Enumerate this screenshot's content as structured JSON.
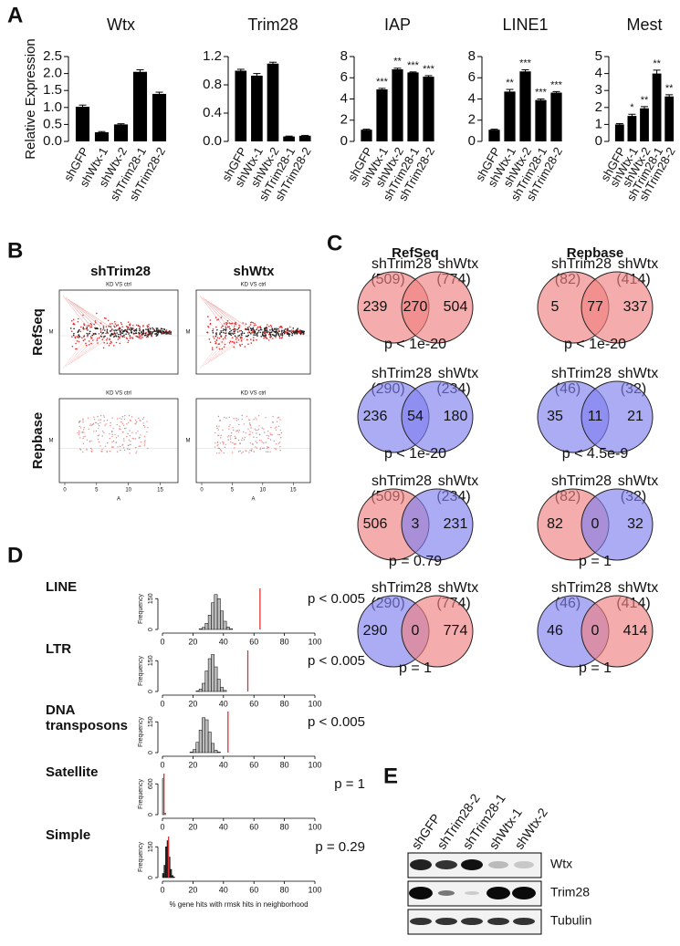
{
  "panel_labels": [
    "A",
    "B",
    "C",
    "D",
    "E"
  ],
  "chart_data": [
    {
      "type": "bar",
      "title": "Wtx",
      "ylabel": "Relative Expression",
      "categories": [
        "shGFP",
        "shWtx-1",
        "shWtx-2",
        "shTrim28-1",
        "shTrim28-2"
      ],
      "values": [
        1.02,
        0.27,
        0.5,
        2.05,
        1.4
      ],
      "errors": [
        0.05,
        0.02,
        0.02,
        0.06,
        0.05
      ],
      "color": "#000000",
      "ylim": [
        0,
        2.5
      ],
      "yticks": [
        {
          "value": 0,
          "label": "0.0"
        },
        0.5,
        {
          "value": 1,
          "label": "1.0"
        },
        1.5,
        {
          "value": 2,
          "label": "2.0"
        },
        2.5
      ]
    },
    {
      "type": "bar",
      "title": "Trim28",
      "categories": [
        "shGFP",
        "shWtx-1",
        "shWtx-2",
        "shTrim28-1",
        "shTrim28-2"
      ],
      "values": [
        1.0,
        0.93,
        1.1,
        0.07,
        0.08
      ],
      "errors": [
        0.02,
        0.03,
        0.02,
        0.005,
        0.005
      ],
      "color": "#000000",
      "ylim": [
        0,
        1.2
      ],
      "yticks": [
        {
          "value": 0,
          "label": "0.0"
        },
        0.4,
        0.8,
        1.2
      ]
    },
    {
      "type": "bar",
      "title": "IAP",
      "categories": [
        "shGFP",
        "shWtx-1",
        "shWtx-2",
        "shTrim28-1",
        "shTrim28-2"
      ],
      "values": [
        1.1,
        4.9,
        6.8,
        6.5,
        6.1
      ],
      "errors": [
        0.05,
        0.1,
        0.1,
        0.05,
        0.1
      ],
      "annotations": [
        null,
        "***",
        "**",
        "***",
        "***"
      ],
      "color": "#000000",
      "ylim": [
        0,
        8
      ],
      "yticks": [
        0,
        2,
        4,
        6,
        8
      ]
    },
    {
      "type": "bar",
      "title": "LINE1",
      "categories": [
        "shGFP",
        "shWtx-1",
        "shWtx-2",
        "shTrim28-1",
        "shTrim28-2"
      ],
      "values": [
        1.1,
        4.7,
        6.6,
        3.9,
        4.6
      ],
      "errors": [
        0.05,
        0.2,
        0.15,
        0.1,
        0.1
      ],
      "annotations": [
        null,
        "**",
        "***",
        "***",
        "***"
      ],
      "color": "#000000",
      "ylim": [
        0,
        8
      ],
      "yticks": [
        0,
        2,
        4,
        6,
        8
      ]
    },
    {
      "type": "bar",
      "title": "Mest",
      "categories": [
        "shGFP",
        "shWtx-1",
        "shWtx-2",
        "shTrim28-1",
        "shTrim28-2"
      ],
      "values": [
        1.0,
        1.5,
        1.95,
        4.0,
        2.65
      ],
      "errors": [
        0.05,
        0.1,
        0.1,
        0.2,
        0.1
      ],
      "annotations": [
        null,
        "*",
        "**",
        "**",
        "**"
      ],
      "color": "#000000",
      "ylim": [
        0,
        5
      ],
      "yticks": [
        0,
        1,
        2,
        3,
        4,
        5
      ]
    },
    {
      "type": "histogram",
      "title": "LINE",
      "annotation": "p < 0.005",
      "ylabel": "Frequency",
      "bins": [
        24,
        26,
        28,
        30,
        32,
        34,
        36,
        38,
        40,
        42,
        44,
        46
      ],
      "values": [
        3,
        10,
        30,
        70,
        130,
        170,
        150,
        90,
        40,
        12,
        3
      ],
      "observed": 64,
      "color": "#bbbbbb",
      "line_color": "#e03030",
      "xlim": [
        0,
        100
      ],
      "xticks": [
        0,
        20,
        40,
        60,
        80,
        100
      ],
      "ylim": [
        0,
        200
      ],
      "yticks": [
        0,
        150
      ]
    },
    {
      "type": "histogram",
      "title": "LTR",
      "annotation": "p < 0.005",
      "ylabel": "Frequency",
      "bins": [
        22,
        24,
        26,
        28,
        30,
        32,
        34,
        36,
        38,
        40,
        42
      ],
      "values": [
        3,
        12,
        40,
        100,
        160,
        180,
        120,
        60,
        20,
        5
      ],
      "observed": 56,
      "color": "#bbbbbb",
      "line_color": "#e03030",
      "xlim": [
        0,
        100
      ],
      "xticks": [
        0,
        20,
        40,
        60,
        80,
        100
      ],
      "ylim": [
        0,
        200
      ],
      "yticks": [
        0,
        150
      ]
    },
    {
      "type": "histogram",
      "title": "DNA transposons",
      "annotation": "p < 0.005",
      "ylabel": "Frequency",
      "bins": [
        18,
        20,
        22,
        24,
        26,
        28,
        30,
        32,
        34,
        36,
        38
      ],
      "values": [
        3,
        15,
        50,
        110,
        170,
        160,
        100,
        45,
        12,
        3
      ],
      "observed": 43,
      "color": "#bbbbbb",
      "line_color": "#e03030",
      "xlim": [
        0,
        100
      ],
      "xticks": [
        0,
        20,
        40,
        60,
        80,
        100
      ],
      "ylim": [
        0,
        200
      ],
      "yticks": [
        0,
        150
      ]
    },
    {
      "type": "histogram",
      "title": "Satellite",
      "annotation": "p = 1",
      "ylabel": "Frequency",
      "bins": [
        0,
        1,
        2
      ],
      "values": [
        700,
        30
      ],
      "observed": 1,
      "color": "#bbbbbb",
      "line_color": "#e03030",
      "xlim": [
        0,
        100
      ],
      "xticks": [
        0,
        20,
        40,
        60,
        80,
        100
      ],
      "ylim": [
        0,
        800
      ],
      "yticks": [
        0,
        600
      ]
    },
    {
      "type": "histogram",
      "title": "Simple",
      "annotation": "p = 0.29",
      "ylabel": "Frequency",
      "xlabel": "% gene hits with rmsk hits in neighborhood",
      "bins": [
        0,
        1,
        2,
        3,
        4,
        5,
        6,
        7,
        8
      ],
      "values": [
        20,
        60,
        150,
        180,
        100,
        40,
        10,
        3
      ],
      "observed": 4,
      "color": "#333333",
      "line_color": "#e03030",
      "xlim": [
        0,
        100
      ],
      "xticks": [
        0,
        20,
        40,
        60,
        80,
        100
      ],
      "ylim": [
        0,
        200
      ],
      "yticks": [
        0,
        150
      ]
    }
  ],
  "ma_plots": {
    "columns": [
      "shTrim28",
      "shWtx"
    ],
    "rows": [
      "RefSeq",
      "Repbase"
    ],
    "plot_title": "KD VS ctrl",
    "x_label": "A",
    "y_label": "M",
    "xticks": [
      0,
      5,
      10,
      15
    ]
  },
  "venn": {
    "column_headers": [
      "RefSeq",
      "Repbase"
    ],
    "rows": [
      [
        {
          "left_name": "shTrim28",
          "right_name": "shWtx",
          "left_total": "(509)",
          "right_total": "(774)",
          "left_only": 239,
          "both": 270,
          "right_only": 504,
          "p": "p < 1e-20",
          "left_color": "#f08080",
          "right_color": "#f08080"
        },
        {
          "left_name": "shTrim28",
          "right_name": "shWtx",
          "left_total": "(82)",
          "right_total": "(414)",
          "left_only": 5,
          "both": 77,
          "right_only": 337,
          "p": "p < 1e-20",
          "left_color": "#f08080",
          "right_color": "#f08080"
        }
      ],
      [
        {
          "left_name": "shTrim28",
          "right_name": "shWtx",
          "left_total": "(290)",
          "right_total": "(234)",
          "left_only": 236,
          "both": 54,
          "right_only": 180,
          "p": "p < 1e-20",
          "left_color": "#8080f0",
          "right_color": "#8080f0"
        },
        {
          "left_name": "shTrim28",
          "right_name": "shWtx",
          "left_total": "(46)",
          "right_total": "(32)",
          "left_only": 35,
          "both": 11,
          "right_only": 21,
          "p": "p < 4.5e-9",
          "left_color": "#8080f0",
          "right_color": "#8080f0"
        }
      ],
      [
        {
          "left_name": "shTrim28",
          "right_name": "shWtx",
          "left_total": "(509)",
          "right_total": "(234)",
          "left_only": 506,
          "both": 3,
          "right_only": 231,
          "p": "p = 0.79",
          "left_color": "#f08080",
          "right_color": "#8080f0"
        },
        {
          "left_name": "shTrim28",
          "right_name": "shWtx",
          "left_total": "(82)",
          "right_total": "(32)",
          "left_only": 82,
          "both": 0,
          "right_only": 32,
          "p": "p = 1",
          "left_color": "#f08080",
          "right_color": "#8080f0"
        }
      ],
      [
        {
          "left_name": "shTrim28",
          "right_name": "shWtx",
          "left_total": "(290)",
          "right_total": "(774)",
          "left_only": 290,
          "both": 0,
          "right_only": 774,
          "p": "p = 1",
          "left_color": "#8080f0",
          "right_color": "#f08080"
        },
        {
          "left_name": "shTrim28",
          "right_name": "shWtx",
          "left_total": "(46)",
          "right_total": "(414)",
          "left_only": 46,
          "both": 0,
          "right_only": 414,
          "p": "p = 1",
          "left_color": "#8080f0",
          "right_color": "#f08080"
        }
      ]
    ]
  },
  "blot": {
    "lanes": [
      "shGFP",
      "shTrim28-2",
      "shTrim28-1",
      "shWtx-1",
      "shWtx-2"
    ],
    "proteins": [
      "Wtx",
      "Trim28",
      "Tubulin"
    ]
  }
}
